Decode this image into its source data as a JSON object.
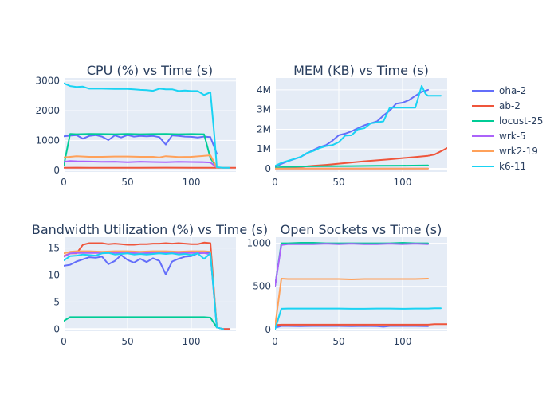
{
  "chart_data": [
    {
      "type": "line",
      "title": "CPU (%) vs Time (s)",
      "xlim": [
        0,
        135
      ],
      "ylim": [
        -60,
        3100
      ],
      "xticks": [
        0,
        50,
        100
      ],
      "xtick_labels": [
        "0",
        "50",
        "100"
      ],
      "yticks": [
        0,
        1000,
        2000,
        3000
      ],
      "ytick_labels": [
        "0",
        "1000",
        "2000",
        "3000"
      ],
      "series": [
        {
          "name": "oha-2",
          "x": [
            0,
            5,
            10,
            15,
            20,
            25,
            30,
            35,
            40,
            45,
            50,
            55,
            60,
            65,
            70,
            75,
            80,
            85,
            90,
            95,
            100,
            105,
            110,
            115,
            120
          ],
          "y": [
            1140,
            1160,
            1180,
            1060,
            1150,
            1180,
            1130,
            1010,
            1170,
            1100,
            1180,
            1130,
            1150,
            1140,
            1150,
            1110,
            860,
            1170,
            1150,
            1130,
            1120,
            1100,
            1130,
            1110,
            550
          ]
        },
        {
          "name": "ab-2",
          "x": [
            0,
            10,
            20,
            40,
            60,
            80,
            100,
            120,
            135
          ],
          "y": [
            80,
            85,
            80,
            80,
            80,
            85,
            80,
            80,
            80
          ]
        },
        {
          "name": "locust-25",
          "x": [
            0,
            5,
            10,
            20,
            30,
            40,
            50,
            60,
            70,
            80,
            90,
            100,
            110,
            115,
            120
          ],
          "y": [
            150,
            1220,
            1210,
            1220,
            1215,
            1210,
            1220,
            1210,
            1215,
            1220,
            1210,
            1215,
            1210,
            400,
            100
          ]
        },
        {
          "name": "wrk-5",
          "x": [
            0,
            5,
            10,
            20,
            30,
            40,
            50,
            60,
            70,
            80,
            90,
            100,
            110,
            115,
            120
          ],
          "y": [
            280,
            310,
            300,
            290,
            280,
            285,
            270,
            285,
            275,
            270,
            280,
            275,
            270,
            260,
            90
          ]
        },
        {
          "name": "wrk2-19",
          "x": [
            0,
            5,
            10,
            20,
            30,
            40,
            50,
            60,
            70,
            75,
            80,
            90,
            100,
            110,
            115,
            120
          ],
          "y": [
            430,
            450,
            470,
            450,
            450,
            460,
            460,
            450,
            450,
            430,
            470,
            440,
            450,
            480,
            500,
            90
          ]
        },
        {
          "name": "k6-11",
          "x": [
            0,
            5,
            10,
            15,
            20,
            30,
            40,
            50,
            55,
            60,
            65,
            70,
            75,
            80,
            85,
            90,
            95,
            100,
            105,
            110,
            115,
            118,
            120,
            125,
            130
          ],
          "y": [
            2920,
            2830,
            2800,
            2810,
            2740,
            2740,
            2730,
            2730,
            2720,
            2700,
            2690,
            2670,
            2740,
            2720,
            2720,
            2660,
            2680,
            2660,
            2660,
            2530,
            2620,
            1200,
            100,
            80,
            80
          ]
        }
      ]
    },
    {
      "type": "line",
      "title": "MEM (KB) vs Time (s)",
      "xlim": [
        0,
        135
      ],
      "ylim": [
        -160000,
        4600000
      ],
      "xticks": [
        0,
        50,
        100
      ],
      "xtick_labels": [
        "0",
        "50",
        "100"
      ],
      "yticks": [
        0,
        1000000,
        2000000,
        3000000,
        4000000
      ],
      "ytick_labels": [
        "0",
        "1M",
        "2M",
        "3M",
        "4M"
      ],
      "series": [
        {
          "name": "oha-2",
          "x": [
            0,
            5,
            10,
            20,
            25,
            30,
            35,
            40,
            45,
            50,
            55,
            60,
            65,
            70,
            75,
            80,
            85,
            90,
            95,
            100,
            105,
            110,
            115,
            120
          ],
          "y": [
            100000,
            250000,
            380000,
            600000,
            780000,
            950000,
            1100000,
            1200000,
            1420000,
            1700000,
            1780000,
            1900000,
            2050000,
            2200000,
            2300000,
            2400000,
            2700000,
            2950000,
            3300000,
            3350000,
            3480000,
            3700000,
            3900000,
            4000000
          ]
        },
        {
          "name": "ab-2",
          "x": [
            0,
            10,
            20,
            30,
            40,
            50,
            60,
            70,
            80,
            90,
            100,
            110,
            120,
            125,
            135
          ],
          "y": [
            30000,
            60000,
            100000,
            150000,
            200000,
            260000,
            320000,
            380000,
            430000,
            480000,
            540000,
            600000,
            660000,
            720000,
            1050000
          ]
        },
        {
          "name": "locust-25",
          "x": [
            0,
            10,
            20,
            40,
            60,
            80,
            100,
            120
          ],
          "y": [
            60000,
            100000,
            120000,
            130000,
            140000,
            150000,
            160000,
            170000
          ]
        },
        {
          "name": "wrk-5",
          "x": [
            0,
            20,
            40,
            60,
            80,
            100,
            120
          ],
          "y": [
            10000,
            10000,
            10000,
            10000,
            10000,
            10000,
            10000
          ]
        },
        {
          "name": "wrk2-19",
          "x": [
            0,
            20,
            40,
            60,
            80,
            100,
            120
          ],
          "y": [
            15000,
            15000,
            15000,
            15000,
            15000,
            15000,
            15000
          ]
        },
        {
          "name": "k6-11",
          "x": [
            0,
            5,
            10,
            20,
            25,
            30,
            35,
            40,
            45,
            50,
            55,
            60,
            65,
            70,
            75,
            80,
            85,
            90,
            95,
            100,
            105,
            110,
            115,
            118,
            120,
            125,
            130
          ],
          "y": [
            150000,
            300000,
            400000,
            600000,
            800000,
            900000,
            1050000,
            1150000,
            1200000,
            1350000,
            1680000,
            1700000,
            2000000,
            2050000,
            2300000,
            2350000,
            2400000,
            3100000,
            3100000,
            3100000,
            3100000,
            3100000,
            4200000,
            3800000,
            3700000,
            3700000,
            3700000
          ]
        }
      ]
    },
    {
      "type": "line",
      "title": "Bandwidth Utilization (%) vs Time (s)",
      "xlim": [
        0,
        135
      ],
      "ylim": [
        -0.4,
        17
      ],
      "xticks": [
        0,
        50,
        100
      ],
      "xtick_labels": [
        "0",
        "50",
        "100"
      ],
      "yticks": [
        0,
        5,
        10,
        15
      ],
      "ytick_labels": [
        "0",
        "5",
        "10",
        "15"
      ],
      "series": [
        {
          "name": "oha-2",
          "x": [
            0,
            5,
            10,
            15,
            20,
            25,
            30,
            35,
            40,
            45,
            50,
            55,
            60,
            65,
            70,
            75,
            80,
            85,
            90,
            95,
            100,
            105,
            110,
            115,
            120,
            125,
            130
          ],
          "y": [
            11.7,
            11.9,
            12.5,
            12.9,
            13.3,
            13.2,
            13.4,
            12.0,
            12.6,
            13.7,
            12.8,
            12.3,
            13.0,
            12.4,
            13.1,
            12.6,
            10.1,
            12.5,
            13.0,
            13.4,
            13.5,
            14.0,
            14.1,
            14.2,
            0.3,
            0.0,
            0.0
          ]
        },
        {
          "name": "ab-2",
          "x": [
            0,
            5,
            10,
            15,
            20,
            25,
            30,
            35,
            40,
            45,
            50,
            55,
            60,
            65,
            70,
            75,
            80,
            85,
            90,
            95,
            100,
            105,
            110,
            115,
            120,
            125,
            130
          ],
          "y": [
            13.5,
            14.0,
            14.0,
            15.6,
            15.9,
            15.9,
            15.9,
            15.7,
            15.8,
            15.7,
            15.6,
            15.6,
            15.7,
            15.7,
            15.8,
            15.8,
            15.9,
            15.8,
            15.9,
            15.8,
            15.7,
            15.7,
            16.0,
            15.9,
            0.3,
            0.0,
            0.0
          ]
        },
        {
          "name": "locust-25",
          "x": [
            0,
            5,
            10,
            20,
            40,
            60,
            80,
            100,
            110,
            115,
            120
          ],
          "y": [
            1.5,
            2.2,
            2.2,
            2.2,
            2.2,
            2.2,
            2.2,
            2.2,
            2.2,
            2.1,
            0.3
          ]
        },
        {
          "name": "wrk-5",
          "x": [
            0,
            5,
            10,
            20,
            30,
            40,
            50,
            60,
            70,
            80,
            90,
            100,
            110,
            115,
            120
          ],
          "y": [
            13.4,
            14.0,
            14.1,
            14.1,
            14.1,
            14.1,
            14.1,
            14.0,
            14.1,
            14.1,
            14.1,
            14.1,
            14.1,
            13.8,
            0.5
          ]
        },
        {
          "name": "wrk2-19",
          "x": [
            0,
            5,
            10,
            20,
            30,
            40,
            50,
            60,
            70,
            80,
            90,
            100,
            110,
            115,
            120
          ],
          "y": [
            14.0,
            14.3,
            14.4,
            14.4,
            14.3,
            14.4,
            14.4,
            14.3,
            14.4,
            14.4,
            14.3,
            14.4,
            14.4,
            14.3,
            0.6
          ]
        },
        {
          "name": "k6-11",
          "x": [
            0,
            5,
            10,
            15,
            20,
            25,
            30,
            35,
            40,
            45,
            50,
            55,
            60,
            65,
            70,
            75,
            80,
            85,
            90,
            95,
            100,
            105,
            110,
            115,
            120,
            125
          ],
          "y": [
            12.7,
            13.5,
            13.6,
            13.8,
            13.7,
            13.6,
            14.0,
            14.1,
            13.8,
            13.9,
            14.0,
            13.8,
            13.9,
            13.8,
            13.9,
            14.0,
            13.9,
            14.0,
            13.8,
            13.9,
            13.7,
            14.0,
            13.0,
            14.0,
            0.3,
            0.0
          ]
        }
      ]
    },
    {
      "type": "line",
      "title": "Open Sockets vs Time (s)",
      "xlim": [
        0,
        135
      ],
      "ylim": [
        -20,
        1070
      ],
      "xticks": [
        0,
        50,
        100
      ],
      "xtick_labels": [
        "0",
        "50",
        "100"
      ],
      "yticks": [
        0,
        500,
        1000
      ],
      "ytick_labels": [
        "0",
        "500",
        "1000"
      ],
      "series": [
        {
          "name": "oha-2",
          "x": [
            0,
            5,
            10,
            20,
            30,
            40,
            50,
            60,
            70,
            80,
            85,
            90,
            100,
            110,
            120
          ],
          "y": [
            20,
            40,
            40,
            38,
            40,
            40,
            40,
            38,
            40,
            38,
            32,
            40,
            40,
            40,
            38
          ]
        },
        {
          "name": "ab-2",
          "x": [
            0,
            5,
            10,
            20,
            30,
            40,
            50,
            60,
            70,
            80,
            90,
            100,
            110,
            120,
            125,
            135
          ],
          "y": [
            50,
            55,
            55,
            55,
            55,
            55,
            55,
            55,
            55,
            55,
            55,
            55,
            55,
            55,
            60,
            60
          ]
        },
        {
          "name": "locust-25",
          "x": [
            0,
            5,
            10,
            20,
            30,
            40,
            50,
            60,
            70,
            80,
            90,
            100,
            110,
            120
          ],
          "y": [
            500,
            1000,
            1000,
            1005,
            1005,
            1000,
            1000,
            1000,
            1000,
            1000,
            1000,
            1005,
            1000,
            1000
          ]
        },
        {
          "name": "wrk-5",
          "x": [
            0,
            5,
            10,
            20,
            30,
            40,
            50,
            60,
            70,
            80,
            90,
            100,
            110,
            120
          ],
          "y": [
            500,
            980,
            990,
            990,
            990,
            995,
            990,
            995,
            990,
            990,
            995,
            990,
            995,
            990
          ]
        },
        {
          "name": "wrk2-19",
          "x": [
            0,
            5,
            10,
            20,
            30,
            40,
            50,
            60,
            70,
            80,
            90,
            100,
            110,
            120
          ],
          "y": [
            30,
            590,
            585,
            585,
            585,
            585,
            585,
            580,
            585,
            585,
            585,
            585,
            585,
            590
          ]
        },
        {
          "name": "k6-11",
          "x": [
            0,
            5,
            10,
            20,
            30,
            40,
            50,
            60,
            70,
            80,
            90,
            100,
            110,
            120,
            125,
            130
          ],
          "y": [
            0,
            240,
            242,
            242,
            242,
            242,
            242,
            240,
            240,
            242,
            242,
            240,
            242,
            242,
            245,
            245
          ]
        }
      ]
    }
  ],
  "legend": {
    "placement": "right",
    "items": [
      {
        "name": "oha-2",
        "color": "#636efa"
      },
      {
        "name": "ab-2",
        "color": "#EF553B"
      },
      {
        "name": "locust-25",
        "color": "#00cc96"
      },
      {
        "name": "wrk-5",
        "color": "#ab63fa"
      },
      {
        "name": "wrk2-19",
        "color": "#FFA15A"
      },
      {
        "name": "k6-11",
        "color": "#19d3f3"
      }
    ]
  }
}
